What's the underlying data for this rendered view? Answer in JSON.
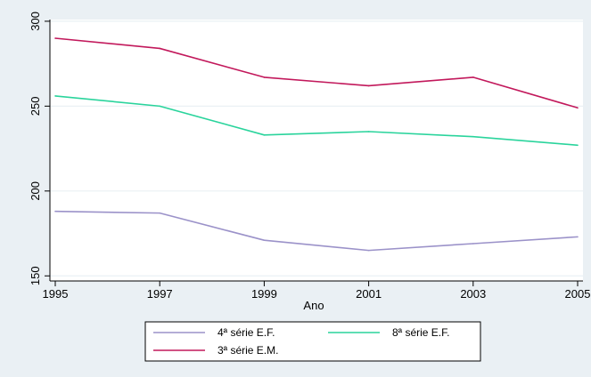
{
  "chart_data": {
    "type": "line",
    "xlabel": "Ano",
    "ylabel": "",
    "x": [
      1995,
      1997,
      1999,
      2001,
      2003,
      2005
    ],
    "xticks": [
      1995,
      1997,
      1999,
      2001,
      2003,
      2005
    ],
    "yticks": [
      150,
      200,
      250,
      300
    ],
    "xlim": [
      1995,
      2005
    ],
    "ylim": [
      147,
      301
    ],
    "grid": true,
    "legend_position": "bottom",
    "series": [
      {
        "name": "4ª série E.F.",
        "color": "#9b92c9",
        "values": [
          188,
          187,
          171,
          165,
          169,
          173
        ]
      },
      {
        "name": "8ª série E.F.",
        "color": "#2ad49c",
        "values": [
          256,
          250,
          233,
          235,
          232,
          227
        ]
      },
      {
        "name": "3ª série E.M.",
        "color": "#c2185b",
        "values": [
          290,
          284,
          267,
          262,
          267,
          249
        ]
      }
    ]
  },
  "colors": {
    "background": "#eaf0f4",
    "plot_background": "#ffffff",
    "grid": "#eaf0f4"
  }
}
